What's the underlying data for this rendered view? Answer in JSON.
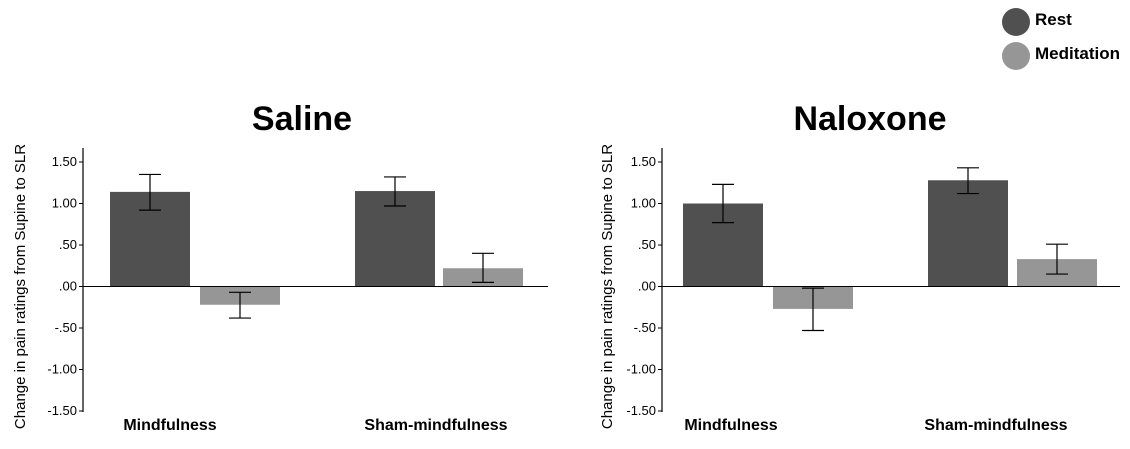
{
  "legend": {
    "items": [
      {
        "label": "Rest",
        "color": "#505050"
      },
      {
        "label": "Meditation",
        "color": "#969696"
      }
    ]
  },
  "chart_data": [
    {
      "type": "bar",
      "title": "Saline",
      "ylabel": "Change in pain ratings from Supine to SLR",
      "xlabel": "",
      "categories": [
        "Mindfulness",
        "Sham-mindfulness"
      ],
      "ylim": [
        -1.5,
        1.5
      ],
      "yticks": [
        {
          "value": 1.5,
          "label": "1.50"
        },
        {
          "value": 1.0,
          "label": "1.00"
        },
        {
          "value": 0.5,
          "label": ".50"
        },
        {
          "value": 0.0,
          "label": ".00"
        },
        {
          "value": -0.5,
          "label": "-.50"
        },
        {
          "value": -1.0,
          "label": "-1.00"
        },
        {
          "value": -1.5,
          "label": "-1.50"
        }
      ],
      "series": [
        {
          "name": "Rest",
          "color": "#505050",
          "values": [
            1.14,
            1.15
          ],
          "err_low": [
            0.92,
            0.97
          ],
          "err_high": [
            1.35,
            1.32
          ]
        },
        {
          "name": "Meditation",
          "color": "#969696",
          "values": [
            -0.22,
            0.22
          ],
          "err_low": [
            -0.38,
            0.05
          ],
          "err_high": [
            -0.07,
            0.4
          ]
        }
      ],
      "grid": false
    },
    {
      "type": "bar",
      "title": "Naloxone",
      "ylabel": "Change in pain ratings from Supine to SLR",
      "xlabel": "",
      "categories": [
        "Mindfulness",
        "Sham-mindfulness"
      ],
      "ylim": [
        -1.5,
        1.5
      ],
      "yticks": [
        {
          "value": 1.5,
          "label": "1.50"
        },
        {
          "value": 1.0,
          "label": "1.00"
        },
        {
          "value": 0.5,
          "label": ".50"
        },
        {
          "value": 0.0,
          "label": ".00"
        },
        {
          "value": -0.5,
          "label": "-.50"
        },
        {
          "value": -1.0,
          "label": "-1.00"
        },
        {
          "value": -1.5,
          "label": "-1.50"
        }
      ],
      "series": [
        {
          "name": "Rest",
          "color": "#505050",
          "values": [
            1.0,
            1.28
          ],
          "err_low": [
            0.77,
            1.12
          ],
          "err_high": [
            1.23,
            1.43
          ]
        },
        {
          "name": "Meditation",
          "color": "#969696",
          "values": [
            -0.27,
            0.33
          ],
          "err_low": [
            -0.53,
            0.15
          ],
          "err_high": [
            -0.02,
            0.51
          ]
        }
      ],
      "grid": false
    }
  ]
}
